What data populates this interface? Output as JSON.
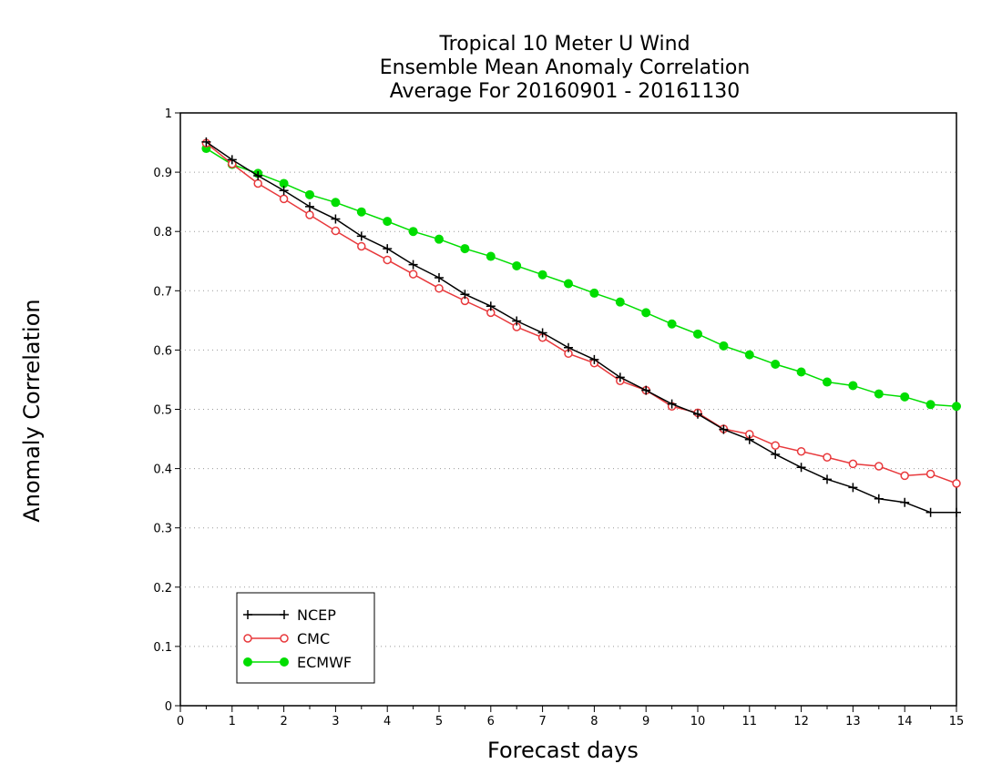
{
  "chart_data": {
    "type": "line",
    "title_lines": [
      "Tropical 10 Meter U Wind",
      "Ensemble Mean Anomaly Correlation",
      "Average For 20160901 - 20161130"
    ],
    "xlabel": "Forecast days",
    "ylabel": "Anomaly Correlation",
    "xlim": [
      0,
      15
    ],
    "ylim": [
      0,
      1
    ],
    "xticks": [
      0,
      1,
      2,
      3,
      4,
      5,
      6,
      7,
      8,
      9,
      10,
      11,
      12,
      13,
      14,
      15
    ],
    "yticks": [
      0,
      0.1,
      0.2,
      0.3,
      0.4,
      0.5,
      0.6,
      0.7,
      0.8,
      0.9,
      1
    ],
    "ytick_labels": [
      "0",
      "0.1",
      "0.2",
      "0.3",
      "0.4",
      "0.5",
      "0.6",
      "0.7",
      "0.8",
      "0.9",
      "1"
    ],
    "grid": "horizontal dotted",
    "legend_position": "bottom-left",
    "x": [
      0.5,
      1,
      1.5,
      2,
      2.5,
      3,
      3.5,
      4,
      4.5,
      5,
      5.5,
      6,
      6.5,
      7,
      7.5,
      8,
      8.5,
      9,
      9.5,
      10,
      10.5,
      11,
      11.5,
      12,
      12.5,
      13,
      13.5,
      14,
      14.5,
      15
    ],
    "series": [
      {
        "name": "NCEP",
        "color": "#000000",
        "marker": "plus",
        "values": [
          0.951,
          0.921,
          0.894,
          0.869,
          0.842,
          0.821,
          0.792,
          0.771,
          0.744,
          0.722,
          0.694,
          0.674,
          0.649,
          0.629,
          0.604,
          0.584,
          0.554,
          0.532,
          0.509,
          0.492,
          0.466,
          0.449,
          0.424,
          0.402,
          0.382,
          0.368,
          0.349,
          0.343,
          0.326,
          0.326
        ]
      },
      {
        "name": "CMC",
        "color": "#e8393c",
        "marker": "open-circle",
        "values": [
          0.949,
          0.914,
          0.881,
          0.855,
          0.828,
          0.801,
          0.775,
          0.752,
          0.728,
          0.704,
          0.683,
          0.663,
          0.639,
          0.621,
          0.594,
          0.578,
          0.548,
          0.532,
          0.505,
          0.494,
          0.467,
          0.458,
          0.439,
          0.429,
          0.419,
          0.408,
          0.404,
          0.388,
          0.391,
          0.375
        ]
      },
      {
        "name": "ECMWF",
        "color": "#00dd00",
        "marker": "filled-circle",
        "values": [
          0.94,
          0.913,
          0.898,
          0.881,
          0.862,
          0.849,
          0.833,
          0.817,
          0.8,
          0.787,
          0.771,
          0.758,
          0.742,
          0.727,
          0.712,
          0.696,
          0.681,
          0.663,
          0.644,
          0.627,
          0.607,
          0.592,
          0.576,
          0.563,
          0.546,
          0.54,
          0.526,
          0.521,
          0.508,
          0.505
        ]
      }
    ]
  }
}
